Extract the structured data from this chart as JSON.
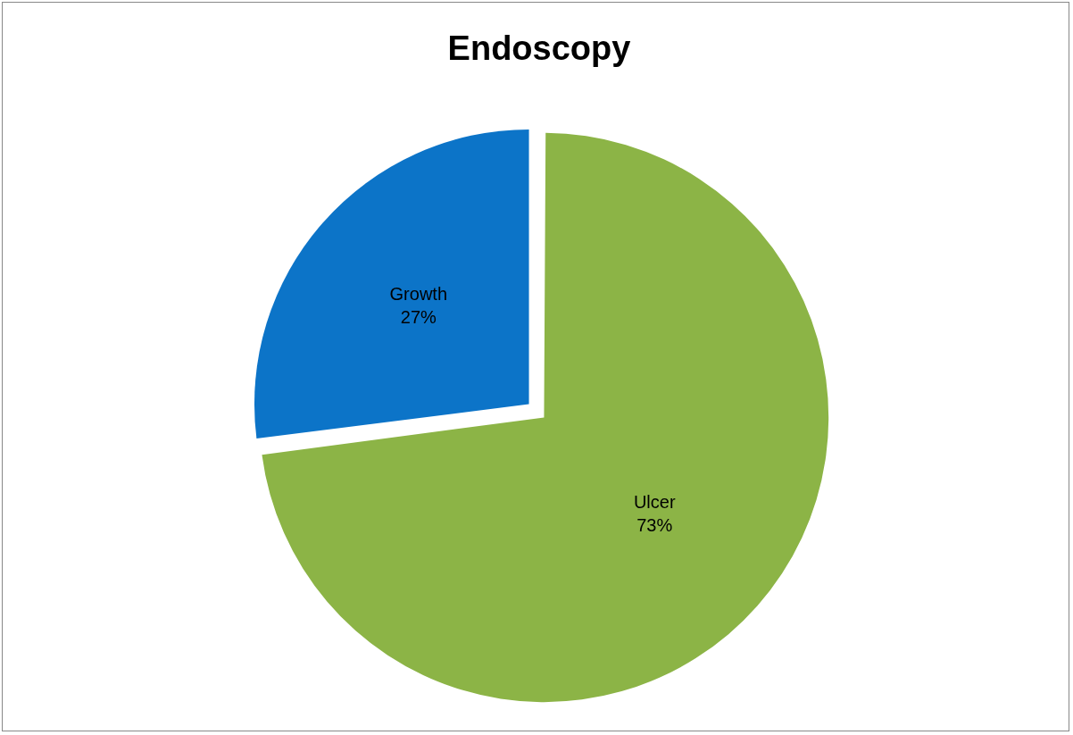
{
  "chart_data": {
    "type": "pie",
    "title": "Endoscopy",
    "categories": [
      "Ulcer",
      "Growth"
    ],
    "values": [
      73,
      27
    ],
    "value_labels": [
      "73%",
      "27%"
    ],
    "colors": [
      "#8cb446",
      "#0c74c8"
    ]
  }
}
